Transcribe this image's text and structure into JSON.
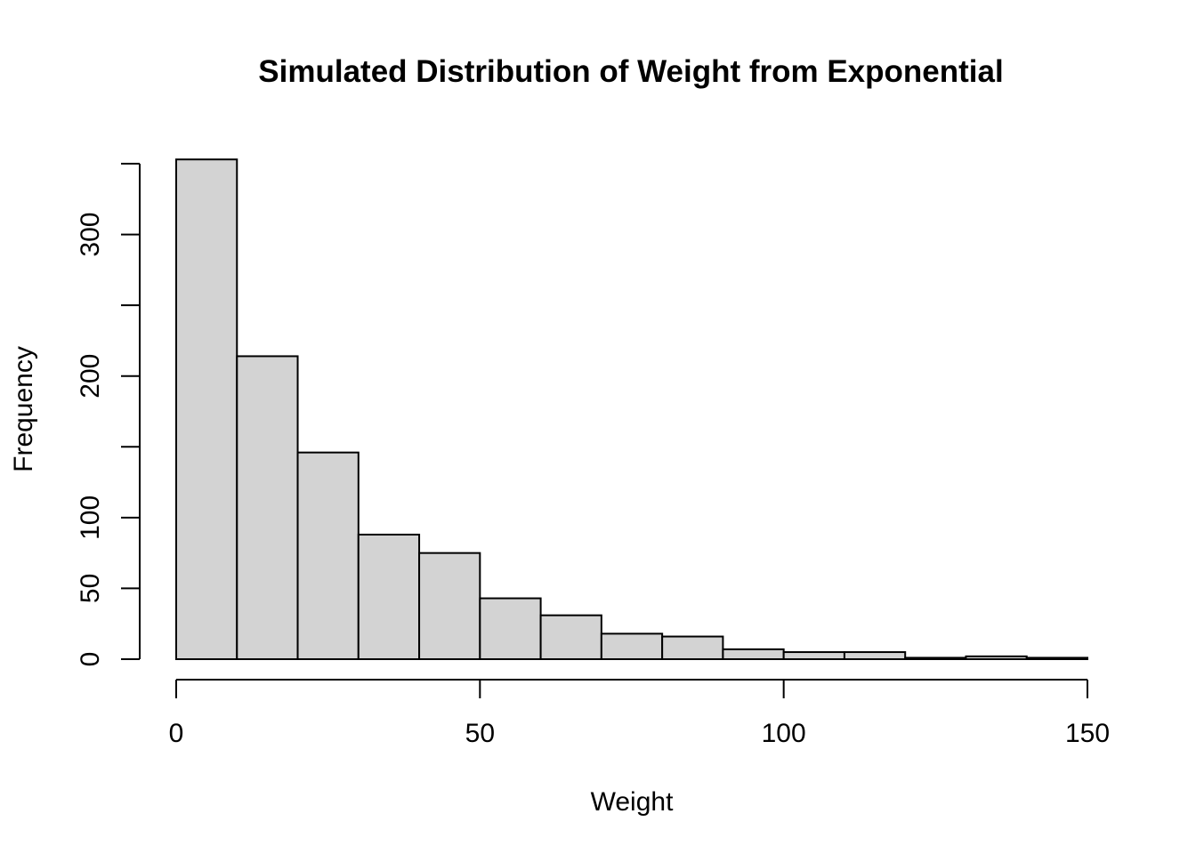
{
  "chart_data": {
    "type": "bar",
    "title": "Simulated Distribution of Weight from Exponential",
    "xlabel": "Weight",
    "ylabel": "Frequency",
    "bin_edges": [
      0,
      10,
      20,
      30,
      40,
      50,
      60,
      70,
      80,
      90,
      100,
      110,
      120,
      130,
      140,
      150
    ],
    "values": [
      353,
      214,
      146,
      88,
      75,
      43,
      31,
      18,
      16,
      7,
      5,
      5,
      1,
      2,
      1
    ],
    "xlim": [
      0,
      150
    ],
    "ylim": [
      0,
      350
    ],
    "x_ticks": [
      0,
      50,
      100,
      150
    ],
    "y_ticks": [
      0,
      50,
      100,
      150,
      200,
      250,
      300,
      350
    ],
    "y_tick_labels": [
      "0",
      "50",
      "100",
      "",
      "200",
      "",
      "300",
      ""
    ],
    "x_tick_labels": [
      "0",
      "50",
      "100",
      "150"
    ],
    "bar_color": "#d3d3d3",
    "border_color": "#000000",
    "grid": false
  }
}
